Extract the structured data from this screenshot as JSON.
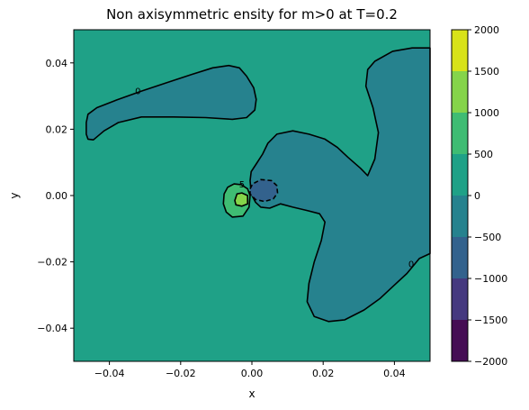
{
  "chart_data": {
    "type": "contourf",
    "title": "Non axisymmetric ensity for m>0 at T=0.2",
    "xlabel": "x",
    "ylabel": "y",
    "xlim": [
      -0.05,
      0.05
    ],
    "ylim": [
      -0.05,
      0.05
    ],
    "x_ticks": [
      -0.04,
      -0.02,
      0.0,
      0.02,
      0.04
    ],
    "x_tick_labels": [
      "−0.04",
      "−0.02",
      "0.00",
      "0.02",
      "0.04"
    ],
    "y_ticks": [
      -0.04,
      -0.02,
      0.0,
      0.02,
      0.04
    ],
    "y_tick_labels": [
      "−0.04",
      "−0.02",
      "0.00",
      "0.02",
      "0.04"
    ],
    "grid": false,
    "colorbar": {
      "position": "right",
      "ticks": [
        -2000,
        -1500,
        -1000,
        -500,
        0,
        500,
        1000,
        1500,
        2000
      ],
      "tick_labels": [
        "−2000",
        "−1500",
        "−1000",
        "−500",
        "0",
        "500",
        "1000",
        "1500",
        "2000"
      ],
      "levels": [
        -2000,
        -1500,
        -1000,
        -500,
        0,
        500,
        1000,
        1500,
        2000
      ],
      "colors": [
        "#450d54",
        "#45397f",
        "#33628d",
        "#26828e",
        "#1fa187",
        "#3fbc73",
        "#85d44a",
        "#d8e219"
      ]
    },
    "background_level_band": [
      0,
      500
    ],
    "contour_labels": [
      {
        "text": "0",
        "x": -0.032,
        "y": 0.0317
      },
      {
        "text": "0",
        "x": 0.0447,
        "y": -0.0205
      },
      {
        "text": "5",
        "x": -0.0028,
        "y": 0.0035
      }
    ],
    "regions": [
      {
        "band": [
          -500,
          0
        ],
        "line_style": "solid",
        "label": "northwest lobe",
        "outline": [
          [
            -0.0465,
            0.0185
          ],
          [
            -0.0465,
            0.022
          ],
          [
            -0.046,
            0.0245
          ],
          [
            -0.0435,
            0.0265
          ],
          [
            -0.038,
            0.0288
          ],
          [
            -0.031,
            0.0315
          ],
          [
            -0.024,
            0.034
          ],
          [
            -0.017,
            0.0365
          ],
          [
            -0.011,
            0.0385
          ],
          [
            -0.0065,
            0.0392
          ],
          [
            -0.0035,
            0.0385
          ],
          [
            -0.0015,
            0.036
          ],
          [
            0.0005,
            0.0325
          ],
          [
            0.0012,
            0.029
          ],
          [
            0.0008,
            0.0258
          ],
          [
            -0.0015,
            0.0235
          ],
          [
            -0.0055,
            0.023
          ],
          [
            -0.013,
            0.0235
          ],
          [
            -0.022,
            0.0237
          ],
          [
            -0.031,
            0.0237
          ],
          [
            -0.0375,
            0.022
          ],
          [
            -0.0415,
            0.0195
          ],
          [
            -0.0445,
            0.0168
          ],
          [
            -0.046,
            0.017
          ]
        ]
      },
      {
        "band": [
          -500,
          0
        ],
        "line_style": "solid",
        "label": "central arm",
        "outline": [
          [
            -0.0005,
            0.0045
          ],
          [
            -0.0002,
            0.0072
          ],
          [
            0.0012,
            0.0095
          ],
          [
            0.003,
            0.0125
          ],
          [
            0.0045,
            0.0158
          ],
          [
            0.007,
            0.0185
          ],
          [
            0.0115,
            0.0195
          ],
          [
            0.016,
            0.0185
          ],
          [
            0.0205,
            0.017
          ],
          [
            0.024,
            0.0145
          ],
          [
            0.027,
            0.0115
          ],
          [
            0.0305,
            0.0082
          ],
          [
            0.0325,
            0.006
          ],
          [
            0.0345,
            0.011
          ],
          [
            0.0355,
            0.019
          ],
          [
            0.034,
            0.0265
          ],
          [
            0.032,
            0.033
          ],
          [
            0.0325,
            0.038
          ],
          [
            0.0345,
            0.0405
          ],
          [
            0.0395,
            0.0435
          ],
          [
            0.045,
            0.0445
          ],
          [
            0.05,
            0.0445
          ],
          [
            0.05,
            -0.0175
          ],
          [
            0.047,
            -0.019
          ],
          [
            0.0435,
            -0.0235
          ],
          [
            0.0395,
            -0.0275
          ],
          [
            0.036,
            -0.031
          ],
          [
            0.0315,
            -0.0345
          ],
          [
            0.026,
            -0.0375
          ],
          [
            0.0215,
            -0.038
          ],
          [
            0.0175,
            -0.0365
          ],
          [
            0.0155,
            -0.032
          ],
          [
            0.016,
            -0.0265
          ],
          [
            0.0175,
            -0.02
          ],
          [
            0.0195,
            -0.0135
          ],
          [
            0.0205,
            -0.008
          ],
          [
            0.019,
            -0.0055
          ],
          [
            0.0155,
            -0.0045
          ],
          [
            0.0115,
            -0.0035
          ],
          [
            0.008,
            -0.0025
          ],
          [
            0.005,
            -0.0038
          ],
          [
            0.0025,
            -0.0035
          ],
          [
            0.001,
            -0.002
          ],
          [
            -0.0002,
            0.0005
          ]
        ]
      },
      {
        "band": [
          -1000,
          -500
        ],
        "line_style": "dashed",
        "label": "negative core",
        "outline": [
          [
            -0.0005,
            0.002
          ],
          [
            0.0002,
            0.0035
          ],
          [
            0.0025,
            0.0048
          ],
          [
            0.0055,
            0.0045
          ],
          [
            0.007,
            0.003
          ],
          [
            0.0072,
            0.0008
          ],
          [
            0.006,
            -0.001
          ],
          [
            0.0035,
            -0.0018
          ],
          [
            0.001,
            -0.0012
          ],
          [
            -0.0005,
            0.0005
          ]
        ]
      },
      {
        "band": [
          500,
          1000
        ],
        "line_style": "solid",
        "label": "positive core",
        "outline": [
          [
            -0.008,
            -0.0025
          ],
          [
            -0.0078,
            0.0005
          ],
          [
            -0.0068,
            0.0025
          ],
          [
            -0.005,
            0.0035
          ],
          [
            -0.003,
            0.0033
          ],
          [
            -0.0012,
            0.002
          ],
          [
            -0.0005,
            0.0
          ],
          [
            -0.0008,
            -0.0035
          ],
          [
            -0.0025,
            -0.0062
          ],
          [
            -0.0055,
            -0.0065
          ],
          [
            -0.0072,
            -0.005
          ]
        ]
      },
      {
        "band": [
          1000,
          1500
        ],
        "line_style": "solid",
        "label": "positive peak",
        "outline": [
          [
            -0.0048,
            -0.0015
          ],
          [
            -0.0042,
            0.0005
          ],
          [
            -0.0028,
            0.0008
          ],
          [
            -0.0012,
            0.0
          ],
          [
            -0.0012,
            -0.0025
          ],
          [
            -0.0028,
            -0.0032
          ],
          [
            -0.0045,
            -0.0028
          ]
        ]
      }
    ]
  }
}
